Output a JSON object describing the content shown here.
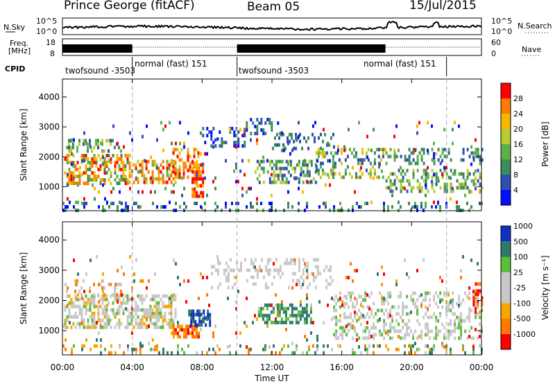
{
  "header": {
    "station": "Prince George (fitACF)",
    "beam": "Beam 05",
    "date": "15/Jul/2015"
  },
  "left_labels": {
    "nsky": "N.Sky",
    "freq_line1": "Freq.",
    "freq_line2": "[MHz]",
    "cpid": "CPID"
  },
  "right_labels": {
    "nsearch": "N.Search",
    "nave": "Nave"
  },
  "noise_panel": {
    "yticks_left": [
      "10^5",
      "10^0"
    ],
    "yticks_right": [
      "10^5",
      "10^0"
    ]
  },
  "freq_panel": {
    "yticks_left": [
      "18",
      "8"
    ],
    "yticks_right": [
      "60",
      "0"
    ]
  },
  "cpid_segments": [
    {
      "label": "twofsound -3503",
      "start_h": 0,
      "end_h": 4.0
    },
    {
      "label": "normal (fast) 151",
      "start_h": 4.0,
      "end_h": 10.0
    },
    {
      "label": "twofsound -3503",
      "start_h": 10.0,
      "end_h": 22.0
    },
    {
      "label": "normal (fast) 151",
      "start_h": 18.0,
      "end_h": 22.0
    }
  ],
  "colors": {
    "power": [
      "#0010ff",
      "#2e4fb0",
      "#3d8a5a",
      "#5bb04a",
      "#b8cc30",
      "#f5b800",
      "#ff7a00",
      "#ff0000"
    ],
    "velocity": [
      "#ff0000",
      "#ff7a00",
      "#f5a800",
      "#c8c8c8",
      "#c8c8c8",
      "#5bbd3a",
      "#2e7a6a",
      "#1030c0"
    ]
  },
  "chart_data": [
    {
      "type": "heatmap",
      "name_ref": "power",
      "ylabel": "Slant Range [km]",
      "yticks": [
        "1000",
        "2000",
        "3000",
        "4000"
      ],
      "ylim": [
        200,
        4600
      ],
      "xlim": [
        0,
        24
      ],
      "colorbar_label": "Power [dB]",
      "colorbar_ticks": [
        "4",
        "8",
        "12",
        "16",
        "20",
        "24",
        "28"
      ]
    },
    {
      "type": "heatmap",
      "name_ref": "velocity",
      "ylabel": "Slant Range [km]",
      "yticks": [
        "1000",
        "2000",
        "3000",
        "4000"
      ],
      "ylim": [
        200,
        4600
      ],
      "xlim": [
        0,
        24
      ],
      "colorbar_label": "Velocity [m s⁻¹]",
      "colorbar_ticks": [
        "1000",
        "500",
        "100",
        "25",
        "-25",
        "-100",
        "-500",
        "-1000"
      ]
    }
  ],
  "xaxis": {
    "ticks": [
      "00:00",
      "04:00",
      "08:00",
      "12:00",
      "16:00",
      "20:00",
      "00:00"
    ],
    "label": "Time UT"
  }
}
